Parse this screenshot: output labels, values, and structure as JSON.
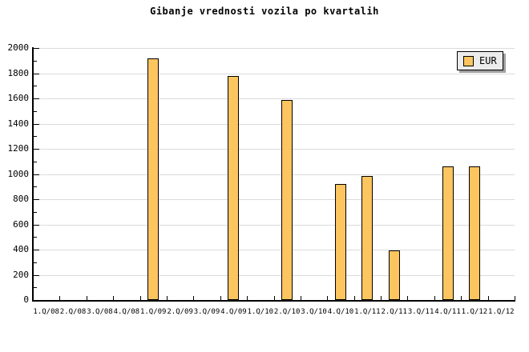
{
  "chart_data": {
    "type": "bar",
    "title": "Gibanje vrednosti vozila po kvartalih",
    "categories": [
      "1.Q/08",
      "2.Q/08",
      "3.Q/08",
      "4.Q/08",
      "1.Q/09",
      "2.Q/09",
      "3.Q/09",
      "4.Q/09",
      "1.Q/10",
      "2.Q/10",
      "3.Q/10",
      "4.Q/10",
      "1.Q/11",
      "2.Q/11",
      "3.Q/11",
      "4.Q/11",
      "1.Q/12",
      "1.Q/12"
    ],
    "values": [
      null,
      null,
      null,
      null,
      1920,
      null,
      null,
      1780,
      null,
      1590,
      null,
      920,
      985,
      395,
      null,
      1060,
      1060,
      null
    ],
    "xlabel": "",
    "ylabel": "",
    "ylim": [
      0,
      2000
    ],
    "ytick_major": 200,
    "ytick_minor": 100,
    "grid": "horizontal-major",
    "legend": {
      "label": "EUR",
      "position": "top-right"
    },
    "colors": {
      "bar_fill": "#FDC560",
      "bar_border": "#000000",
      "grid": "#DCDCDC",
      "axis": "#000000",
      "legend_bg": "#ECECEC",
      "legend_shadow": "#A0A0A0",
      "background": "#FFFFFF"
    }
  }
}
